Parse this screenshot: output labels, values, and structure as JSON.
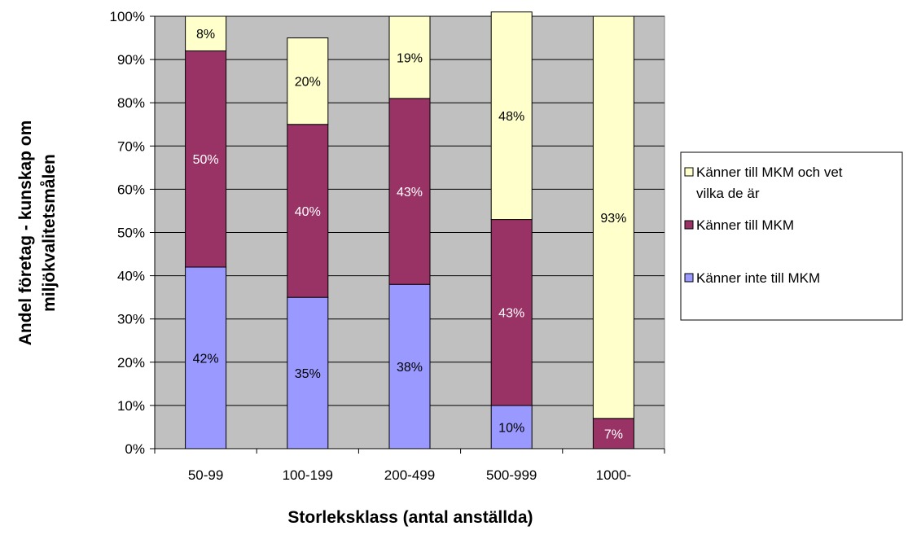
{
  "chart_data": {
    "type": "bar",
    "stacked": true,
    "percent_stacked": true,
    "categories": [
      "50-99",
      "100-199",
      "200-499",
      "500-999",
      "1000-"
    ],
    "series": [
      {
        "name": "Känner inte till MKM",
        "color": "#9999ff",
        "values": [
          42,
          35,
          38,
          10,
          0
        ],
        "labels": [
          "42%",
          "35%",
          "38%",
          "10%",
          ""
        ]
      },
      {
        "name": " Känner till MKM",
        "color": "#993366",
        "values": [
          50,
          40,
          43,
          43,
          7
        ],
        "labels": [
          "50%",
          "40%",
          "43%",
          "43%",
          "7%"
        ]
      },
      {
        "name": "Känner till MKM och vet vilka de är",
        "color": "#ffffcc",
        "values": [
          8,
          20,
          19,
          48,
          93
        ],
        "labels": [
          "8%",
          "20%",
          "19%",
          "48%",
          "93%"
        ]
      }
    ],
    "legend_order": [
      2,
      1,
      0
    ],
    "title": "",
    "xlabel": "Storleksklass (antal anställda)",
    "ylabel_lines": [
      "Andel företag - kunskap om",
      "miljökvalitetsmålen"
    ],
    "yticks": [
      "0%",
      "10%",
      "20%",
      "30%",
      "40%",
      "50%",
      "60%",
      "70%",
      "80%",
      "90%",
      "100%"
    ],
    "ylim": [
      0,
      100
    ],
    "plot_background": "#c0c0c0",
    "grid": true,
    "legend_position": "right"
  }
}
